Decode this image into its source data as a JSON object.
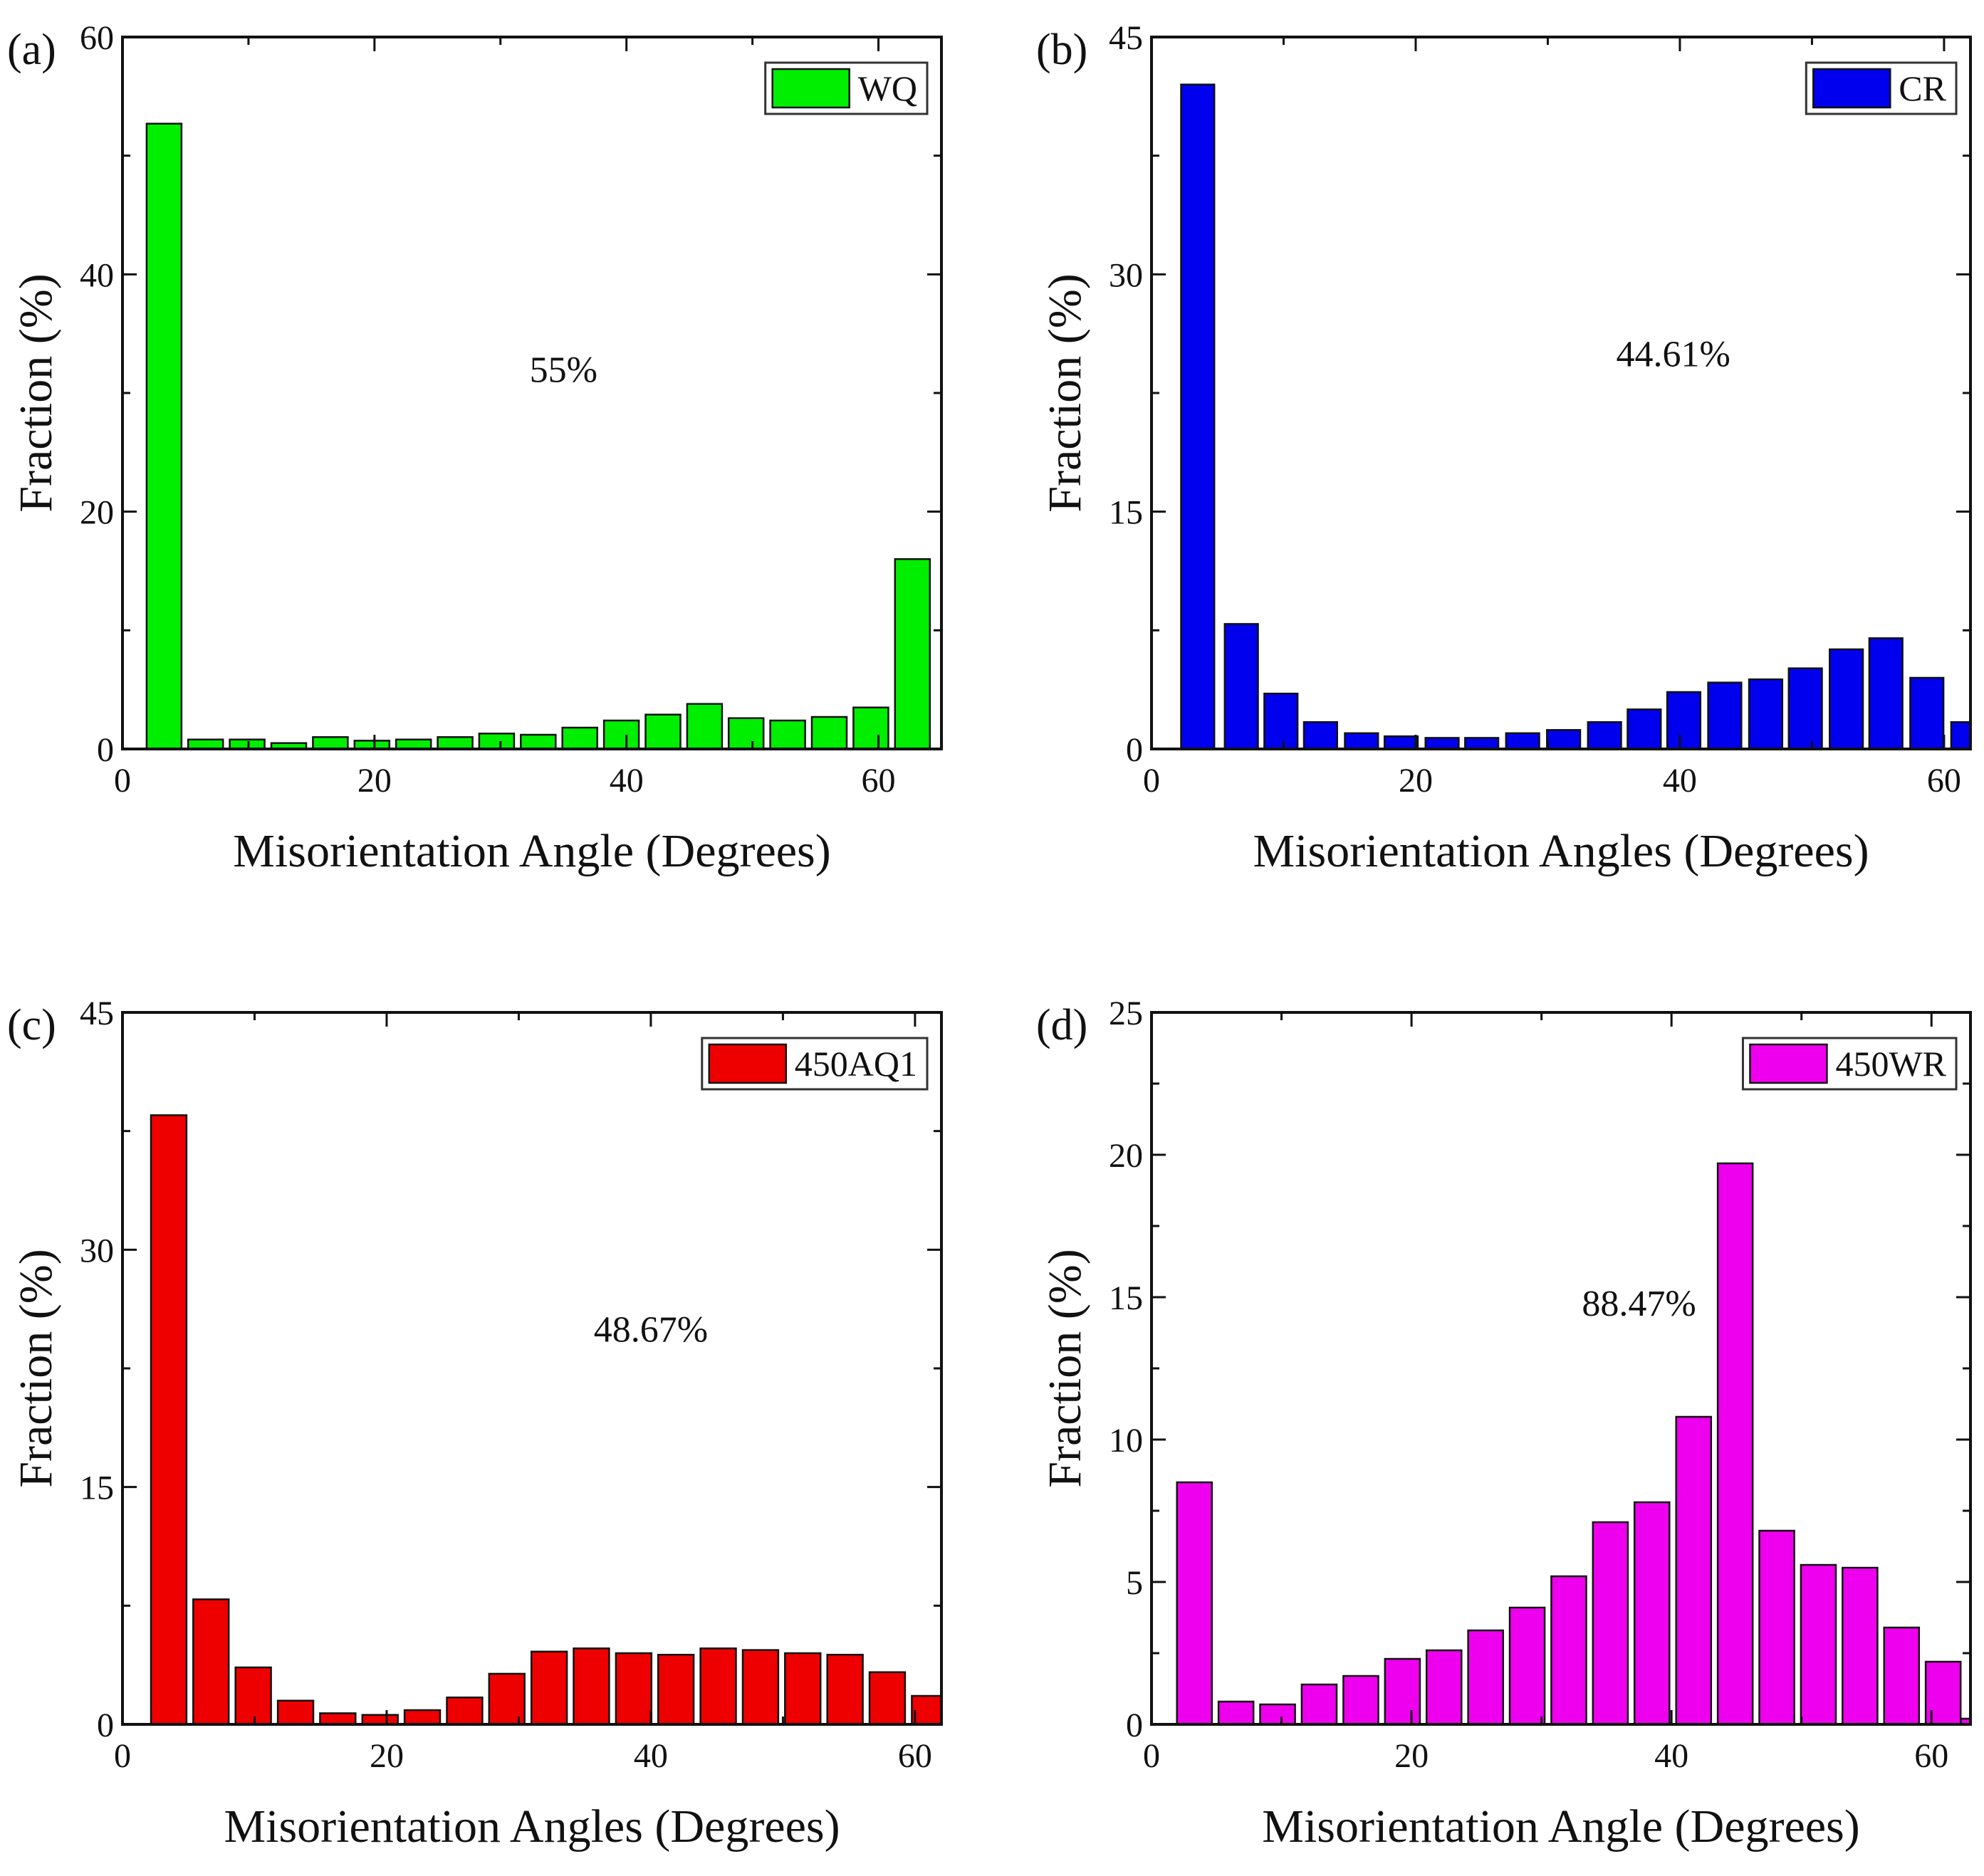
{
  "figure": {
    "background": "#ffffff",
    "axis_color": "#111111",
    "bar_edge": "#111111"
  },
  "chart_data": [
    {
      "panel_label": "(a)",
      "type": "bar",
      "bin_width": 3.3,
      "x": [
        3.3,
        6.6,
        9.9,
        13.2,
        16.5,
        19.8,
        23.1,
        26.4,
        29.7,
        33.0,
        36.3,
        39.6,
        42.9,
        46.2,
        49.5,
        52.8,
        56.1,
        59.4,
        62.7
      ],
      "values": [
        52.7,
        0.8,
        0.8,
        0.5,
        1.0,
        0.7,
        0.8,
        1.0,
        1.3,
        1.2,
        1.8,
        2.4,
        2.9,
        3.8,
        2.6,
        2.4,
        2.7,
        3.5,
        16.0
      ],
      "title": "",
      "xlabel": "Misorientation Angle (Degrees)",
      "ylabel": "Fraction (%)",
      "xlim": [
        0,
        65
      ],
      "ylim": [
        0,
        60
      ],
      "xticks": [
        0,
        20,
        40,
        60
      ],
      "yticks": [
        0,
        20,
        40,
        60
      ],
      "legend": {
        "label": "WQ",
        "position": "top-right"
      },
      "color": "#00ee00",
      "annotation": "55%",
      "annotation_at": [
        35,
        32
      ]
    },
    {
      "panel_label": "(b)",
      "type": "bar",
      "bin_width": 3.0,
      "x": [
        3.5,
        6.8,
        9.8,
        12.8,
        15.9,
        18.9,
        22.0,
        25.0,
        28.1,
        31.2,
        34.3,
        37.3,
        40.3,
        43.4,
        46.5,
        49.5,
        52.6,
        55.6,
        58.7,
        61.8
      ],
      "values": [
        42.0,
        7.9,
        3.5,
        1.7,
        1.0,
        0.8,
        0.7,
        0.7,
        1.0,
        1.2,
        1.7,
        2.5,
        3.6,
        4.2,
        4.4,
        5.1,
        6.3,
        7.0,
        4.5,
        1.7
      ],
      "title": "",
      "xlabel": "Misorientation Angles (Degrees)",
      "ylabel": "Fraction (%)",
      "xlim": [
        0,
        62
      ],
      "ylim": [
        0,
        45
      ],
      "xticks": [
        0,
        20,
        40,
        60
      ],
      "yticks": [
        0,
        15,
        30,
        45
      ],
      "legend": {
        "label": "CR",
        "position": "top-right"
      },
      "color": "#0000ee",
      "annotation": "44.61%",
      "annotation_at": [
        39.5,
        25
      ]
    },
    {
      "panel_label": "(c)",
      "type": "bar",
      "bin_width": 3.2,
      "x": [
        3.5,
        6.7,
        9.9,
        13.1,
        16.3,
        19.5,
        22.7,
        25.9,
        29.1,
        32.3,
        35.5,
        38.7,
        41.9,
        45.1,
        48.3,
        51.5,
        54.7,
        57.9,
        61.1
      ],
      "values": [
        38.5,
        7.9,
        3.6,
        1.5,
        0.7,
        0.6,
        0.9,
        1.7,
        3.2,
        4.6,
        4.8,
        4.5,
        4.4,
        4.8,
        4.7,
        4.5,
        4.4,
        3.3,
        1.8
      ],
      "title": "",
      "xlabel": "Misorientation Angles (Degrees)",
      "ylabel": "Fraction (%)",
      "xlim": [
        0,
        62
      ],
      "ylim": [
        0,
        45
      ],
      "xticks": [
        0,
        20,
        40,
        60
      ],
      "yticks": [
        0,
        15,
        30,
        45
      ],
      "legend": {
        "label": "450AQ1",
        "position": "top-right"
      },
      "color": "#ee0000",
      "annotation": "48.67%",
      "annotation_at": [
        40,
        25
      ]
    },
    {
      "panel_label": "(d)",
      "type": "bar",
      "bin_width": 3.2,
      "x": [
        3.3,
        6.5,
        9.7,
        12.9,
        16.1,
        19.3,
        22.5,
        25.7,
        28.9,
        32.1,
        35.3,
        38.5,
        41.7,
        44.9,
        48.1,
        51.3,
        54.5,
        57.7,
        60.9,
        63.6
      ],
      "values": [
        8.5,
        0.8,
        0.7,
        1.4,
        1.7,
        2.3,
        2.6,
        3.3,
        4.1,
        5.2,
        7.1,
        7.8,
        10.8,
        19.7,
        6.8,
        5.6,
        5.5,
        3.4,
        2.2,
        0.2
      ],
      "title": "",
      "xlabel": "Misorientation Angle (Degrees)",
      "ylabel": "Fraction (%)",
      "xlim": [
        0,
        63
      ],
      "ylim": [
        0,
        25
      ],
      "xticks": [
        0,
        20,
        40,
        60
      ],
      "yticks": [
        0,
        5,
        10,
        15,
        20,
        25
      ],
      "legend": {
        "label": "450WR",
        "position": "top-right"
      },
      "color": "#ee00ee",
      "annotation": "88.47%",
      "annotation_at": [
        37.5,
        14.8
      ]
    }
  ]
}
